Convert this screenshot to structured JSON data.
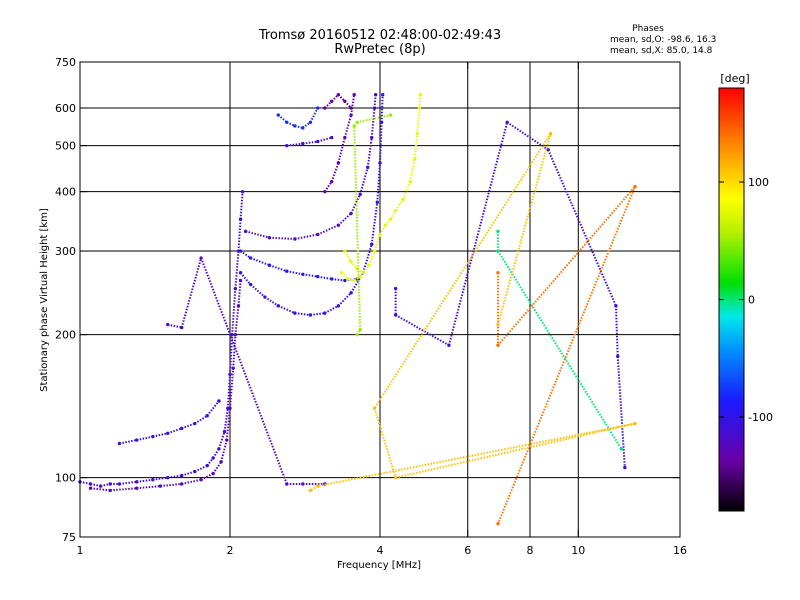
{
  "chart_data": {
    "type": "scatter",
    "title": "Tromsø 20160512 02:48:00-02:49:43",
    "subtitle": "RwPretec (8p)",
    "phase_box": {
      "heading": "Phases",
      "line1": "mean, sd,O: -98.6, 16.3",
      "line2": "mean, sd,X:  85.0, 14.8"
    },
    "xlabel": "Frequency [MHz]",
    "ylabel": "Stationary phase Virtual Height [km]",
    "x_scale": "log",
    "y_scale": "log",
    "xlim": [
      1,
      16
    ],
    "ylim": [
      75,
      750
    ],
    "xticks": [
      {
        "value": 1,
        "label": "1"
      },
      {
        "value": 2,
        "label": "2"
      },
      {
        "value": 4,
        "label": "4"
      },
      {
        "value": 6,
        "label": "6"
      },
      {
        "value": 8,
        "label": "8"
      },
      {
        "value": 10,
        "label": "10"
      },
      {
        "value": 16,
        "label": "16"
      }
    ],
    "yticks": [
      {
        "value": 75,
        "label": "75"
      },
      {
        "value": 100,
        "label": "100"
      },
      {
        "value": 200,
        "label": "200"
      },
      {
        "value": 300,
        "label": "300"
      },
      {
        "value": 400,
        "label": "400"
      },
      {
        "value": 500,
        "label": "500"
      },
      {
        "value": 600,
        "label": "600"
      },
      {
        "value": 750,
        "label": "750"
      }
    ],
    "grid_x": [
      2,
      4,
      6,
      8,
      10
    ],
    "grid_y": [
      100,
      200,
      300,
      400,
      500,
      600
    ],
    "colorbar": {
      "label": "[deg]",
      "range": [
        -180,
        180
      ],
      "ticks": [
        {
          "value": 100,
          "label": "100"
        },
        {
          "value": 0,
          "label": "0"
        },
        {
          "value": -100,
          "label": "-100"
        }
      ]
    },
    "traces": [
      {
        "name": "",
        "phase": -110,
        "points": [
          [
            1.0,
            98
          ],
          [
            1.05,
            97
          ],
          [
            1.1,
            96
          ],
          [
            1.15,
            97
          ],
          [
            1.2,
            97
          ],
          [
            1.3,
            98
          ],
          [
            1.4,
            99
          ],
          [
            1.5,
            100
          ],
          [
            1.6,
            101
          ],
          [
            1.7,
            103
          ],
          [
            1.8,
            106
          ],
          [
            1.85,
            110
          ],
          [
            1.9,
            115
          ],
          [
            1.95,
            125
          ],
          [
            1.98,
            140
          ],
          [
            2.0,
            165
          ],
          [
            2.02,
            200
          ],
          [
            2.05,
            250
          ],
          [
            2.08,
            300
          ],
          [
            2.1,
            350
          ],
          [
            2.12,
            400
          ]
        ]
      },
      {
        "name": "",
        "phase": -125,
        "points": [
          [
            1.05,
            95
          ],
          [
            1.15,
            94
          ],
          [
            1.3,
            95
          ],
          [
            1.45,
            96
          ],
          [
            1.6,
            97
          ],
          [
            1.75,
            99
          ],
          [
            1.85,
            102
          ],
          [
            1.92,
            108
          ],
          [
            1.97,
            120
          ],
          [
            2.0,
            140
          ],
          [
            2.03,
            170
          ],
          [
            2.05,
            200
          ],
          [
            2.08,
            230
          ],
          [
            2.1,
            260
          ]
        ]
      },
      {
        "name": "",
        "phase": -105,
        "points": [
          [
            1.2,
            118
          ],
          [
            1.3,
            120
          ],
          [
            1.4,
            122
          ],
          [
            1.5,
            124
          ],
          [
            1.6,
            127
          ],
          [
            1.7,
            130
          ],
          [
            1.8,
            135
          ],
          [
            1.9,
            145
          ]
        ]
      },
      {
        "name": "",
        "phase": -100,
        "points": [
          [
            2.1,
            270
          ],
          [
            2.2,
            255
          ],
          [
            2.35,
            240
          ],
          [
            2.5,
            230
          ],
          [
            2.7,
            222
          ],
          [
            2.9,
            220
          ],
          [
            3.1,
            222
          ],
          [
            3.3,
            230
          ],
          [
            3.5,
            245
          ],
          [
            3.7,
            270
          ],
          [
            3.85,
            310
          ],
          [
            3.95,
            380
          ],
          [
            4.0,
            460
          ],
          [
            4.03,
            560
          ],
          [
            4.05,
            640
          ]
        ]
      },
      {
        "name": "",
        "phase": -95,
        "points": [
          [
            2.1,
            300
          ],
          [
            2.2,
            290
          ],
          [
            2.4,
            280
          ],
          [
            2.6,
            272
          ],
          [
            2.8,
            268
          ],
          [
            3.0,
            265
          ],
          [
            3.2,
            262
          ],
          [
            3.4,
            260
          ],
          [
            3.6,
            262
          ]
        ]
      },
      {
        "name": "",
        "phase": -120,
        "points": [
          [
            2.15,
            330
          ],
          [
            2.4,
            320
          ],
          [
            2.7,
            318
          ],
          [
            3.0,
            325
          ],
          [
            3.3,
            340
          ],
          [
            3.5,
            360
          ],
          [
            3.65,
            395
          ],
          [
            3.78,
            450
          ],
          [
            3.85,
            520
          ],
          [
            3.9,
            600
          ],
          [
            3.92,
            640
          ]
        ]
      },
      {
        "name": "",
        "phase": -130,
        "points": [
          [
            3.1,
            400
          ],
          [
            3.2,
            420
          ],
          [
            3.3,
            460
          ],
          [
            3.4,
            520
          ],
          [
            3.5,
            580
          ],
          [
            3.55,
            640
          ]
        ]
      },
      {
        "name": "",
        "phase": -80,
        "points": [
          [
            2.5,
            580
          ],
          [
            2.6,
            560
          ],
          [
            2.7,
            550
          ],
          [
            2.8,
            545
          ],
          [
            2.9,
            560
          ],
          [
            3.0,
            600
          ]
        ]
      },
      {
        "name": "",
        "phase": -115,
        "points": [
          [
            2.6,
            500
          ],
          [
            2.8,
            505
          ],
          [
            3.0,
            510
          ],
          [
            3.2,
            520
          ]
        ]
      },
      {
        "name": "",
        "phase": -140,
        "points": [
          [
            3.1,
            600
          ],
          [
            3.2,
            620
          ],
          [
            3.3,
            640
          ],
          [
            3.4,
            620
          ],
          [
            3.5,
            600
          ]
        ]
      },
      {
        "name": "",
        "phase": 75,
        "points": [
          [
            3.4,
            300
          ],
          [
            3.5,
            285
          ],
          [
            3.6,
            275
          ],
          [
            3.7,
            270
          ],
          [
            3.8,
            280
          ],
          [
            3.9,
            300
          ],
          [
            4.0,
            325
          ],
          [
            4.1,
            340
          ],
          [
            4.2,
            350
          ],
          [
            4.3,
            365
          ],
          [
            4.45,
            385
          ],
          [
            4.6,
            420
          ],
          [
            4.7,
            470
          ],
          [
            4.75,
            530
          ],
          [
            4.8,
            600
          ],
          [
            4.82,
            640
          ]
        ]
      },
      {
        "name": "",
        "phase": 80,
        "points": [
          [
            3.35,
            270
          ],
          [
            3.45,
            262
          ],
          [
            3.55,
            260
          ],
          [
            3.65,
            265
          ]
        ]
      },
      {
        "name": "",
        "phase": 50,
        "points": [
          [
            3.6,
            200
          ],
          [
            3.65,
            205
          ],
          [
            3.55,
            550
          ],
          [
            3.6,
            560
          ],
          [
            4.2,
            580
          ]
        ]
      },
      {
        "name": "",
        "phase": -120,
        "points": [
          [
            1.5,
            210
          ],
          [
            1.6,
            207
          ],
          [
            1.75,
            290
          ],
          [
            2.6,
            97
          ],
          [
            2.8,
            97
          ],
          [
            3.1,
            97
          ]
        ]
      },
      {
        "name": "",
        "phase": -110,
        "points": [
          [
            4.3,
            250
          ],
          [
            4.3,
            220
          ],
          [
            5.5,
            190
          ],
          [
            7.2,
            560
          ],
          [
            8.7,
            490
          ],
          [
            11.9,
            230
          ],
          [
            12.0,
            180
          ],
          [
            12.4,
            105
          ]
        ]
      },
      {
        "name": "",
        "phase": 0,
        "points": [
          [
            6.9,
            330
          ],
          [
            6.9,
            300
          ],
          [
            12.2,
            115
          ]
        ]
      },
      {
        "name": "",
        "phase": 140,
        "points": [
          [
            6.9,
            270
          ],
          [
            6.9,
            190
          ],
          [
            13.0,
            410
          ],
          [
            6.9,
            80
          ]
        ]
      },
      {
        "name": "",
        "phase": 110,
        "points": [
          [
            6.9,
            210
          ],
          [
            8.8,
            530
          ],
          [
            3.9,
            140
          ],
          [
            4.3,
            100
          ],
          [
            13.0,
            130
          ],
          [
            3.0,
            96
          ],
          [
            2.9,
            94
          ]
        ]
      }
    ]
  }
}
